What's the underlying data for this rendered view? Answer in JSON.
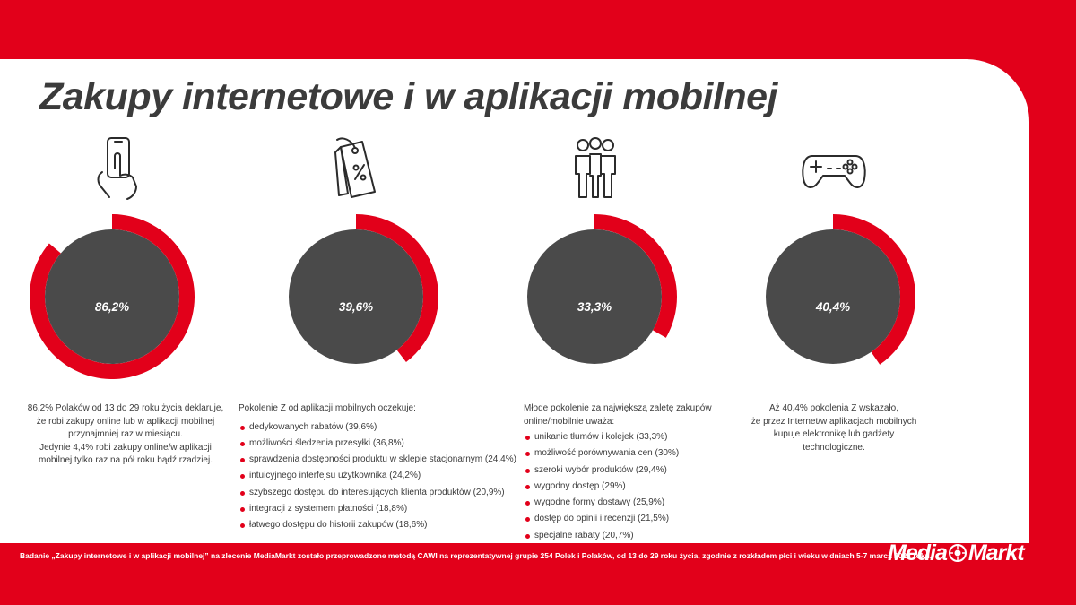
{
  "title": "Zakupy internetowe i w aplikacji mobilnej",
  "colors": {
    "accent": "#e2001a",
    "donut_fill": "#4a4a4a",
    "text": "#3b3b3b"
  },
  "icons": [
    "smartphone-touch-icon",
    "price-tag-percent-icon",
    "group-of-people-icon",
    "gamepad-icon"
  ],
  "chart_data": [
    {
      "type": "pie",
      "labels": [
        "86,2%"
      ],
      "values": [
        86.2
      ]
    },
    {
      "type": "pie",
      "labels": [
        "39,6%"
      ],
      "values": [
        39.6
      ]
    },
    {
      "type": "pie",
      "labels": [
        "33,3%"
      ],
      "values": [
        33.3
      ]
    },
    {
      "type": "pie",
      "labels": [
        "40,4%"
      ],
      "values": [
        40.4
      ]
    }
  ],
  "descriptions": {
    "d1": {
      "lines": [
        "86,2% Polaków od 13 do 29 roku życia deklaruje,",
        "że robi zakupy online lub w aplikacji mobilnej",
        "przynajmniej raz w miesiącu.",
        "Jedynie 4,4% robi zakupy online/w aplikacji",
        "mobilnej tylko raz na pół roku bądź rzadziej."
      ]
    },
    "d2": {
      "intro": "Pokolenie Z od aplikacji mobilnych oczekuje:",
      "items": [
        "dedykowanych rabatów (39,6%)",
        "możliwości śledzenia przesyłki (36,8%)",
        "sprawdzenia dostępności produktu w sklepie stacjonarnym (24,4%)",
        "intuicyjnego interfejsu użytkownika (24,2%)",
        "szybszego dostępu do interesujących klienta produktów (20,9%)",
        "integracji z systemem płatności (18,8%)",
        "łatwego dostępu do historii zakupów (18,6%)"
      ]
    },
    "d3": {
      "intro_lines": [
        "Młode pokolenie za największą zaletę zakupów",
        "online/mobilnie uważa:"
      ],
      "items": [
        "unikanie tłumów i kolejek (33,3%)",
        "możliwość porównywania cen (30%)",
        "szeroki wybór produktów (29,4%)",
        "wygodny dostęp (29%)",
        "wygodne formy dostawy (25,9%)",
        "dostęp do opinii i recenzji (21,5%)",
        "specjalne rabaty (20,7%)"
      ]
    },
    "d4": {
      "lines": [
        "Aż 40,4% pokolenia Z wskazało,",
        "że przez Internet/w aplikacjach mobilnych",
        "kupuje elektronikę lub gadżety",
        "technologiczne."
      ]
    }
  },
  "footnote": "Badanie „Zakupy internetowe i w aplikacji mobilnej”  na zlecenie MediaMarkt zostało przeprowadzone metodą CAWI na reprezentatywnej grupie 254 Polek i Polaków, od 13 do 29 roku życia, zgodnie z rozkładem płci i wieku w dniach 5-7 marca 2024 roku.",
  "logo": {
    "part1": "Media",
    "part2": "Markt"
  }
}
